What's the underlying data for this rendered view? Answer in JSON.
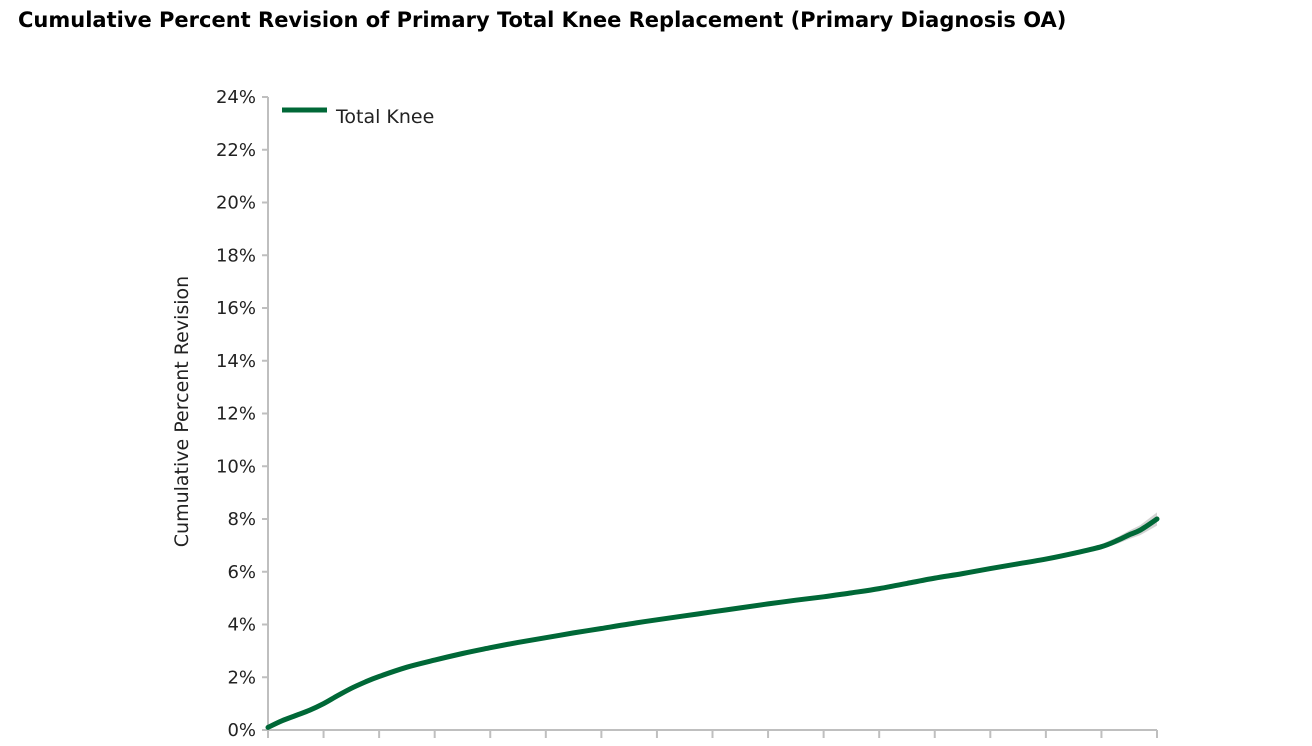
{
  "chart_data": {
    "type": "line",
    "title": "Cumulative Percent Revision of Primary Total Knee Replacement (Primary Diagnosis OA)",
    "ylabel": "Cumulative Percent Revision",
    "xlabel": "",
    "ylim": [
      0,
      24
    ],
    "yticks": [
      0,
      2,
      4,
      6,
      8,
      10,
      12,
      14,
      16,
      18,
      20,
      22,
      24
    ],
    "ytick_suffix": "%",
    "x_range": [
      0,
      16
    ],
    "x_tick_count": 17,
    "grid": false,
    "legend_position": "top-left",
    "series": [
      {
        "name": "Total Knee",
        "color": "#006837",
        "band_color": "#c8c8c8",
        "x": [
          0,
          0.25,
          0.5,
          0.75,
          1,
          1.25,
          1.5,
          1.75,
          2,
          2.5,
          3,
          3.5,
          4,
          4.5,
          5,
          5.5,
          6,
          6.5,
          7,
          7.5,
          8,
          8.5,
          9,
          9.5,
          10,
          10.5,
          11,
          11.5,
          12,
          12.5,
          13,
          13.5,
          14,
          14.5,
          15,
          15.3,
          15.5,
          15.7,
          16
        ],
        "values": [
          0.1,
          0.35,
          0.55,
          0.75,
          1.0,
          1.3,
          1.58,
          1.82,
          2.03,
          2.38,
          2.65,
          2.9,
          3.12,
          3.32,
          3.5,
          3.68,
          3.85,
          4.02,
          4.18,
          4.33,
          4.48,
          4.63,
          4.78,
          4.92,
          5.05,
          5.2,
          5.36,
          5.56,
          5.76,
          5.93,
          6.12,
          6.3,
          6.48,
          6.7,
          6.95,
          7.2,
          7.4,
          7.58,
          8.0
        ],
        "band_halfwidth": [
          0.02,
          0.02,
          0.02,
          0.02,
          0.02,
          0.02,
          0.02,
          0.02,
          0.02,
          0.02,
          0.02,
          0.02,
          0.02,
          0.02,
          0.02,
          0.02,
          0.02,
          0.02,
          0.02,
          0.02,
          0.02,
          0.02,
          0.03,
          0.03,
          0.03,
          0.03,
          0.03,
          0.04,
          0.04,
          0.05,
          0.05,
          0.06,
          0.07,
          0.08,
          0.1,
          0.13,
          0.16,
          0.19,
          0.25
        ]
      }
    ]
  }
}
